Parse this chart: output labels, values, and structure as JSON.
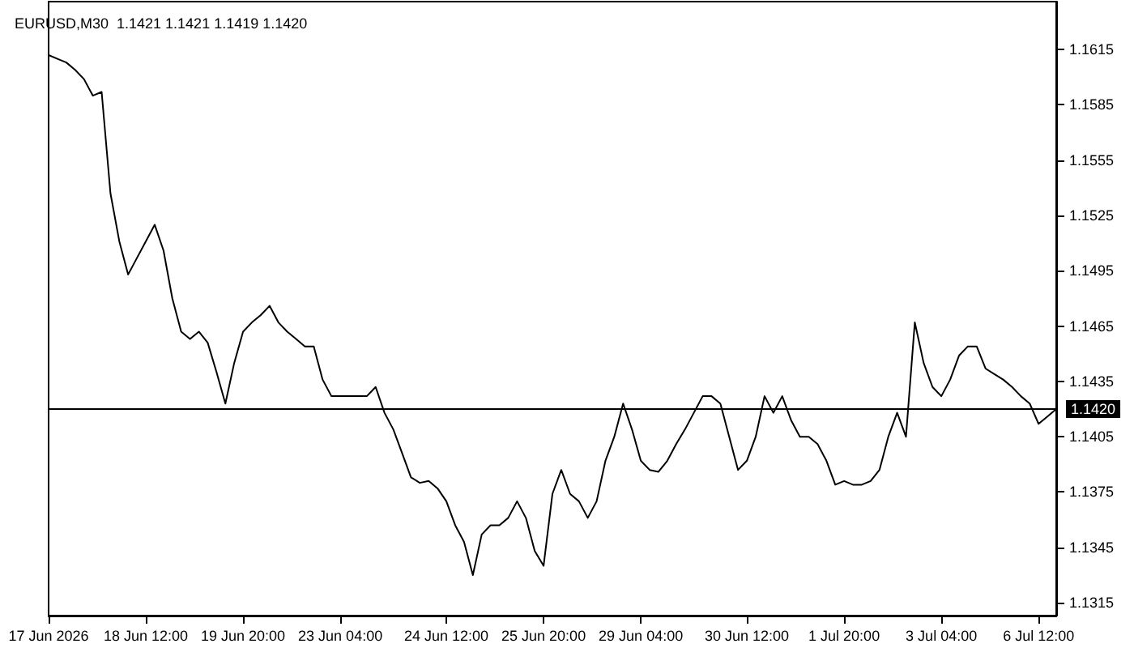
{
  "chart_data": {
    "type": "line",
    "title": "EURUSD,M30  1.1421 1.1421 1.1419 1.1420",
    "categories": [
      "17 Jun 2026",
      null,
      null,
      null,
      null,
      null,
      null,
      null,
      null,
      null,
      null,
      "18 Jun 12:00",
      null,
      null,
      null,
      null,
      null,
      null,
      null,
      null,
      null,
      null,
      "19 Jun 20:00",
      null,
      null,
      null,
      null,
      null,
      null,
      null,
      null,
      null,
      null,
      "23 Jun 04:00",
      null,
      null,
      null,
      null,
      null,
      null,
      null,
      null,
      null,
      null,
      null,
      "24 Jun 12:00",
      null,
      null,
      null,
      null,
      null,
      null,
      null,
      null,
      null,
      null,
      "25 Jun 20:00",
      null,
      null,
      null,
      null,
      null,
      null,
      null,
      null,
      null,
      null,
      "29 Jun 04:00",
      null,
      null,
      null,
      null,
      null,
      null,
      null,
      null,
      null,
      null,
      null,
      "30 Jun 12:00",
      null,
      null,
      null,
      null,
      null,
      null,
      null,
      null,
      null,
      null,
      "1 Jul 20:00",
      null,
      null,
      null,
      null,
      null,
      null,
      null,
      null,
      null,
      null,
      "3 Jul 04:00",
      null,
      null,
      null,
      null,
      null,
      null,
      null,
      null,
      null,
      null,
      "6 Jul 12:00",
      null,
      null
    ],
    "series": [
      {
        "color": "#000000",
        "values": [
          1.1612,
          1.161,
          1.1608,
          1.1604,
          1.1599,
          1.159,
          1.1592,
          1.1537,
          1.1511,
          1.1493,
          1.1502,
          1.1511,
          1.152,
          1.1506,
          1.148,
          1.1462,
          1.1458,
          1.1462,
          1.1456,
          1.144,
          1.1423,
          1.1445,
          1.1462,
          1.1467,
          1.1471,
          1.1476,
          1.1467,
          1.1462,
          1.1458,
          1.1454,
          1.1454,
          1.1436,
          1.1427,
          1.1427,
          1.1427,
          1.1427,
          1.1427,
          1.1432,
          1.1418,
          1.1409,
          1.1396,
          1.1383,
          1.138,
          1.1381,
          1.1377,
          1.137,
          1.1357,
          1.1348,
          1.133,
          1.1352,
          1.1357,
          1.1357,
          1.1361,
          1.137,
          1.1361,
          1.1343,
          1.1335,
          1.1374,
          1.1387,
          1.1374,
          1.137,
          1.1361,
          1.137,
          1.1392,
          1.1405,
          1.1423,
          1.1409,
          1.1392,
          1.1387,
          1.1386,
          1.1392,
          1.1401,
          1.1409,
          1.1418,
          1.1427,
          1.1427,
          1.1423,
          1.1405,
          1.1387,
          1.1392,
          1.1405,
          1.1427,
          1.1418,
          1.1427,
          1.1414,
          1.1405,
          1.1405,
          1.1401,
          1.1392,
          1.1379,
          1.1381,
          1.1379,
          1.1379,
          1.1381,
          1.1387,
          1.1405,
          1.1418,
          1.1405,
          1.1467,
          1.1445,
          1.1432,
          1.1427,
          1.1436,
          1.1449,
          1.1454,
          1.1454,
          1.1442,
          1.1439,
          1.1436,
          1.1432,
          1.1427,
          1.1423,
          1.1412,
          1.1416,
          1.142
        ]
      }
    ],
    "ylim": [
      1.1308,
      1.1641
    ],
    "yticks": [
      1.1315,
      1.1345,
      1.1375,
      1.1405,
      1.1435,
      1.1465,
      1.1495,
      1.1525,
      1.1555,
      1.1585,
      1.1615
    ],
    "ref_lines": [
      {
        "axis": "y",
        "value": 1.142,
        "label": "1.1420",
        "color": "#000000"
      }
    ],
    "grid": false,
    "marker": "none",
    "line_style": "solid"
  }
}
